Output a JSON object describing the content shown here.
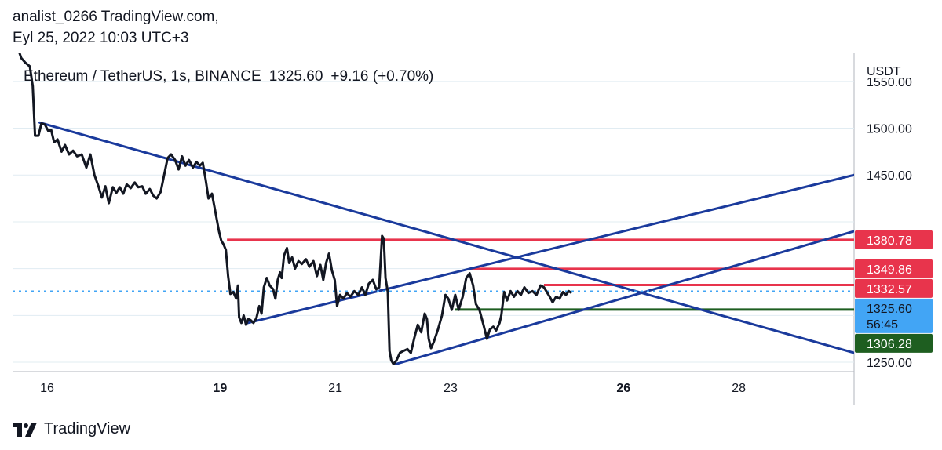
{
  "header": {
    "author_line": "analist_0266 TradingView.com,",
    "date_line": "Eyl 25, 2022 10:03 UTC+3"
  },
  "legend": {
    "symbol": "Ethereum / TetherUS, 1s, BINANCE",
    "last": "1325.60",
    "change": "+9.16 (+0.70%)"
  },
  "footer": {
    "brand": "TradingView"
  },
  "colors": {
    "price_line": "#131722",
    "trendline": "#1a3a9c",
    "resistance": "#e8344c",
    "support": "#1e5e20",
    "current_price": "#42a5f5",
    "grid": "#e1ecf2"
  },
  "chart_data": {
    "type": "line",
    "y_axis": {
      "currency": "USDT",
      "ticks": [
        1250,
        1300,
        1350,
        1400,
        1450,
        1500,
        1550
      ],
      "tick_labels": [
        "1250.00",
        "1450.00",
        "1500.00",
        "1550.00"
      ],
      "range": [
        1240,
        1580
      ]
    },
    "x_axis": {
      "labels": [
        {
          "day": 16,
          "text": "16",
          "bold": false
        },
        {
          "day": 19,
          "text": "19",
          "bold": true
        },
        {
          "day": 21,
          "text": "21",
          "bold": false
        },
        {
          "day": 23,
          "text": "23",
          "bold": false
        },
        {
          "day": 26,
          "text": "26",
          "bold": true
        },
        {
          "day": 28,
          "text": "28",
          "bold": false
        }
      ],
      "range": [
        15.4,
        30.0
      ]
    },
    "price_series": {
      "name": "ETHUSDT",
      "points": [
        [
          15.47,
          1590
        ],
        [
          15.55,
          1575
        ],
        [
          15.62,
          1570
        ],
        [
          15.7,
          1566
        ],
        [
          15.75,
          1545
        ],
        [
          15.79,
          1492
        ],
        [
          15.85,
          1492
        ],
        [
          15.9,
          1505
        ],
        [
          15.96,
          1504
        ],
        [
          16.02,
          1497
        ],
        [
          16.07,
          1498
        ],
        [
          16.12,
          1485
        ],
        [
          16.18,
          1488
        ],
        [
          16.25,
          1475
        ],
        [
          16.31,
          1482
        ],
        [
          16.38,
          1472
        ],
        [
          16.45,
          1476
        ],
        [
          16.52,
          1470
        ],
        [
          16.6,
          1472
        ],
        [
          16.68,
          1458
        ],
        [
          16.75,
          1472
        ],
        [
          16.82,
          1450
        ],
        [
          16.89,
          1438
        ],
        [
          16.95,
          1426
        ],
        [
          17.01,
          1438
        ],
        [
          17.07,
          1420
        ],
        [
          17.14,
          1437
        ],
        [
          17.2,
          1431
        ],
        [
          17.26,
          1437
        ],
        [
          17.32,
          1430
        ],
        [
          17.38,
          1440
        ],
        [
          17.45,
          1436
        ],
        [
          17.52,
          1442
        ],
        [
          17.58,
          1437
        ],
        [
          17.65,
          1438
        ],
        [
          17.71,
          1430
        ],
        [
          17.78,
          1435
        ],
        [
          17.84,
          1428
        ],
        [
          17.9,
          1425
        ],
        [
          17.97,
          1432
        ],
        [
          18.03,
          1450
        ],
        [
          18.09,
          1468
        ],
        [
          18.15,
          1472
        ],
        [
          18.22,
          1466
        ],
        [
          18.28,
          1456
        ],
        [
          18.34,
          1470
        ],
        [
          18.4,
          1460
        ],
        [
          18.46,
          1466
        ],
        [
          18.53,
          1458
        ],
        [
          18.59,
          1464
        ],
        [
          18.65,
          1460
        ],
        [
          18.7,
          1463
        ],
        [
          18.75,
          1445
        ],
        [
          18.8,
          1425
        ],
        [
          18.86,
          1430
        ],
        [
          18.92,
          1410
        ],
        [
          18.98,
          1390
        ],
        [
          19.02,
          1380
        ],
        [
          19.06,
          1376
        ],
        [
          19.1,
          1370
        ],
        [
          19.14,
          1342
        ],
        [
          19.18,
          1323
        ],
        [
          19.23,
          1325
        ],
        [
          19.28,
          1318
        ],
        [
          19.31,
          1332
        ],
        [
          19.33,
          1298
        ],
        [
          19.37,
          1292
        ],
        [
          19.41,
          1300
        ],
        [
          19.45,
          1290
        ],
        [
          19.49,
          1296
        ],
        [
          19.53,
          1295
        ],
        [
          19.58,
          1292
        ],
        [
          19.63,
          1297
        ],
        [
          19.68,
          1310
        ],
        [
          19.72,
          1302
        ],
        [
          19.76,
          1330
        ],
        [
          19.81,
          1340
        ],
        [
          19.86,
          1332
        ],
        [
          19.92,
          1328
        ],
        [
          19.96,
          1318
        ],
        [
          20.0,
          1338
        ],
        [
          20.04,
          1346
        ],
        [
          20.07,
          1340
        ],
        [
          20.11,
          1364
        ],
        [
          20.16,
          1372
        ],
        [
          20.2,
          1356
        ],
        [
          20.25,
          1362
        ],
        [
          20.3,
          1350
        ],
        [
          20.36,
          1358
        ],
        [
          20.42,
          1355
        ],
        [
          20.49,
          1360
        ],
        [
          20.55,
          1352
        ],
        [
          20.62,
          1358
        ],
        [
          20.68,
          1342
        ],
        [
          20.74,
          1354
        ],
        [
          20.79,
          1338
        ],
        [
          20.84,
          1356
        ],
        [
          20.89,
          1366
        ],
        [
          20.94,
          1348
        ],
        [
          20.99,
          1338
        ],
        [
          21.03,
          1310
        ],
        [
          21.08,
          1322
        ],
        [
          21.14,
          1318
        ],
        [
          21.2,
          1324
        ],
        [
          21.26,
          1320
        ],
        [
          21.33,
          1326
        ],
        [
          21.4,
          1322
        ],
        [
          21.46,
          1330
        ],
        [
          21.52,
          1322
        ],
        [
          21.58,
          1334
        ],
        [
          21.65,
          1338
        ],
        [
          21.71,
          1328
        ],
        [
          21.76,
          1330
        ],
        [
          21.81,
          1385
        ],
        [
          21.84,
          1382
        ],
        [
          21.87,
          1340
        ],
        [
          21.91,
          1325
        ],
        [
          21.94,
          1262
        ],
        [
          21.97,
          1252
        ],
        [
          22.01,
          1248
        ],
        [
          22.06,
          1252
        ],
        [
          22.12,
          1260
        ],
        [
          22.18,
          1262
        ],
        [
          22.25,
          1264
        ],
        [
          22.31,
          1260
        ],
        [
          22.37,
          1276
        ],
        [
          22.43,
          1290
        ],
        [
          22.49,
          1282
        ],
        [
          22.55,
          1302
        ],
        [
          22.59,
          1296
        ],
        [
          22.62,
          1275
        ],
        [
          22.66,
          1265
        ],
        [
          22.71,
          1272
        ],
        [
          22.78,
          1285
        ],
        [
          22.85,
          1300
        ],
        [
          22.91,
          1322
        ],
        [
          22.96,
          1318
        ],
        [
          23.02,
          1306
        ],
        [
          23.08,
          1322
        ],
        [
          23.14,
          1306
        ],
        [
          23.21,
          1320
        ],
        [
          23.27,
          1340
        ],
        [
          23.33,
          1345
        ],
        [
          23.39,
          1332
        ],
        [
          23.44,
          1312
        ],
        [
          23.5,
          1306
        ],
        [
          23.57,
          1290
        ],
        [
          23.63,
          1275
        ],
        [
          23.68,
          1285
        ],
        [
          23.74,
          1288
        ],
        [
          23.79,
          1284
        ],
        [
          23.85,
          1292
        ],
        [
          23.88,
          1300
        ],
        [
          23.93,
          1325
        ],
        [
          23.98,
          1316
        ],
        [
          24.04,
          1326
        ],
        [
          24.1,
          1320
        ],
        [
          24.16,
          1326
        ],
        [
          24.22,
          1322
        ],
        [
          24.28,
          1330
        ],
        [
          24.35,
          1324
        ],
        [
          24.42,
          1326
        ],
        [
          24.49,
          1322
        ],
        [
          24.56,
          1332
        ],
        [
          24.62,
          1330
        ],
        [
          24.67,
          1325
        ],
        [
          24.72,
          1320
        ],
        [
          24.77,
          1314
        ],
        [
          24.83,
          1320
        ],
        [
          24.89,
          1318
        ],
        [
          24.95,
          1325
        ],
        [
          25.0,
          1322
        ],
        [
          25.05,
          1326
        ],
        [
          25.1,
          1324
        ]
      ]
    },
    "trendlines": [
      {
        "kind": "descending",
        "start": [
          15.87,
          1506
        ],
        "end": [
          30.0,
          1260
        ]
      },
      {
        "kind": "ascending-upper",
        "start": [
          19.48,
          1292
        ],
        "end": [
          30.0,
          1450
        ]
      },
      {
        "kind": "ascending-lower",
        "start": [
          22.05,
          1248
        ],
        "end": [
          30.0,
          1390
        ]
      }
    ],
    "horizontal_levels": [
      {
        "value": 1380.78,
        "label": "1380.78",
        "kind": "resistance",
        "from_day": 19.12
      },
      {
        "value": 1349.86,
        "label": "1349.86",
        "kind": "resistance",
        "from_day": 23.33
      },
      {
        "value": 1332.57,
        "label": "1332.57",
        "kind": "resistance",
        "from_day": 24.62
      },
      {
        "value": 1306.28,
        "label": "1306.28",
        "kind": "support",
        "from_day": 23.08
      }
    ],
    "current_price": {
      "value": 1325.6,
      "label": "1325.60",
      "countdown": "56:45"
    }
  }
}
